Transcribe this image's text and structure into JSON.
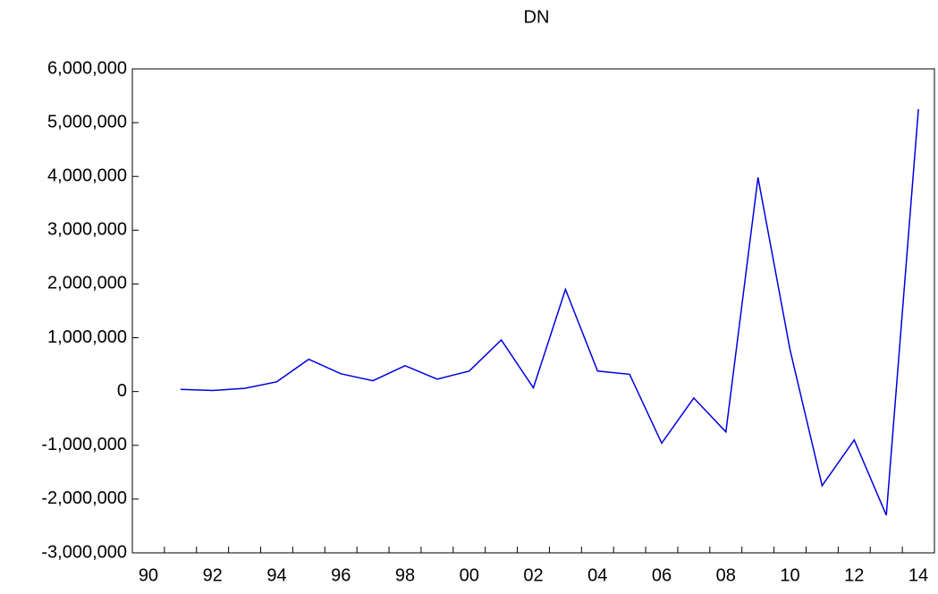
{
  "chart_data": {
    "type": "line",
    "title": "DN",
    "categories": [
      "90",
      null,
      "92",
      null,
      "94",
      null,
      "96",
      null,
      "98",
      null,
      "00",
      null,
      "02",
      null,
      "04",
      null,
      "06",
      null,
      "08",
      null,
      "10",
      null,
      "12",
      null,
      "14"
    ],
    "series": [
      {
        "color": "#0000e0",
        "values": [
          null,
          40000,
          20000,
          60000,
          180000,
          600000,
          330000,
          200000,
          480000,
          230000,
          380000,
          960000,
          70000,
          1900000,
          380000,
          320000,
          -960000,
          -120000,
          -750000,
          3980000,
          780000,
          -1750000,
          -900000,
          -2300000,
          5250000
        ]
      }
    ],
    "ylim": [
      -3000000,
      6000000
    ],
    "yticks": [
      {
        "value": -3000000,
        "label": "-3,000,000"
      },
      {
        "value": -2000000,
        "label": "-2,000,000"
      },
      {
        "value": -1000000,
        "label": "-1,000,000"
      },
      0,
      {
        "value": 1000000,
        "label": "1,000,000"
      },
      {
        "value": 2000000,
        "label": "2,000,000"
      },
      {
        "value": 3000000,
        "label": "3,000,000"
      },
      {
        "value": 4000000,
        "label": "4,000,000"
      },
      {
        "value": 5000000,
        "label": "5,000,000"
      },
      {
        "value": 6000000,
        "label": "6,000,000"
      }
    ],
    "grid": false
  }
}
